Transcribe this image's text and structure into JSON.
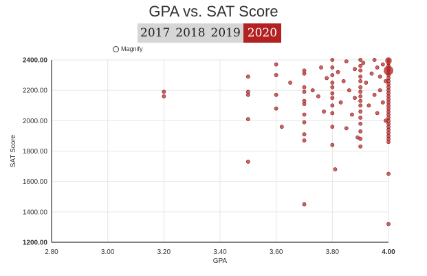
{
  "chart_data": {
    "type": "scatter",
    "title": "GPA vs. SAT Score",
    "xlabel": "GPA",
    "ylabel": "SAT Score",
    "xlim": [
      2.8,
      4.0
    ],
    "ylim": [
      1200,
      2400
    ],
    "x_ticks": [
      "2.80",
      "3.00",
      "3.20",
      "3.40",
      "3.60",
      "3.80",
      "4.00"
    ],
    "y_ticks": [
      "1200.00",
      "1400.00",
      "1600.00",
      "1800.00",
      "2000.00",
      "2200.00",
      "2400.00"
    ],
    "grid": true,
    "marker_color": "#b22222",
    "points": [
      [
        3.2,
        2190
      ],
      [
        3.2,
        2160
      ],
      [
        3.5,
        2290
      ],
      [
        3.5,
        2190
      ],
      [
        3.5,
        2170
      ],
      [
        3.5,
        2010
      ],
      [
        3.5,
        1730
      ],
      [
        3.6,
        2370
      ],
      [
        3.6,
        2300
      ],
      [
        3.6,
        2170
      ],
      [
        3.6,
        2080
      ],
      [
        3.62,
        1960
      ],
      [
        3.65,
        2250
      ],
      [
        3.7,
        2330
      ],
      [
        3.7,
        2310
      ],
      [
        3.7,
        2220
      ],
      [
        3.7,
        2190
      ],
      [
        3.7,
        2130
      ],
      [
        3.7,
        2110
      ],
      [
        3.7,
        2040
      ],
      [
        3.7,
        1990
      ],
      [
        3.7,
        1910
      ],
      [
        3.7,
        1870
      ],
      [
        3.7,
        1450
      ],
      [
        3.73,
        2200
      ],
      [
        3.75,
        2160
      ],
      [
        3.76,
        2350
      ],
      [
        3.77,
        2060
      ],
      [
        3.78,
        2280
      ],
      [
        3.8,
        2400
      ],
      [
        3.8,
        2350
      ],
      [
        3.8,
        2300
      ],
      [
        3.8,
        2250
      ],
      [
        3.8,
        2220
      ],
      [
        3.8,
        2180
      ],
      [
        3.8,
        2150
      ],
      [
        3.8,
        2100
      ],
      [
        3.8,
        2050
      ],
      [
        3.8,
        1960
      ],
      [
        3.8,
        1840
      ],
      [
        3.81,
        1680
      ],
      [
        3.82,
        2320
      ],
      [
        3.83,
        2120
      ],
      [
        3.84,
        2260
      ],
      [
        3.85,
        2390
      ],
      [
        3.85,
        1950
      ],
      [
        3.86,
        2200
      ],
      [
        3.87,
        2040
      ],
      [
        3.88,
        2340
      ],
      [
        3.88,
        2150
      ],
      [
        3.89,
        1890
      ],
      [
        3.9,
        2400
      ],
      [
        3.9,
        2360
      ],
      [
        3.9,
        2330
      ],
      [
        3.9,
        2290
      ],
      [
        3.9,
        2260
      ],
      [
        3.9,
        2220
      ],
      [
        3.9,
        2190
      ],
      [
        3.9,
        2160
      ],
      [
        3.9,
        2130
      ],
      [
        3.9,
        2100
      ],
      [
        3.9,
        2060
      ],
      [
        3.9,
        2020
      ],
      [
        3.9,
        1980
      ],
      [
        3.9,
        1930
      ],
      [
        3.9,
        1880
      ],
      [
        3.9,
        1830
      ],
      [
        3.91,
        2380
      ],
      [
        3.92,
        2250
      ],
      [
        3.93,
        2100
      ],
      [
        3.94,
        2310
      ],
      [
        3.95,
        2170
      ],
      [
        3.95,
        2400
      ],
      [
        3.96,
        2050
      ],
      [
        3.96,
        2350
      ],
      [
        3.97,
        2200
      ],
      [
        3.97,
        2290
      ],
      [
        3.98,
        2370
      ],
      [
        3.98,
        2120
      ],
      [
        3.99,
        2000
      ],
      [
        3.99,
        2260
      ],
      [
        4.0,
        2400
      ],
      [
        4.0,
        2380
      ],
      [
        4.0,
        2360
      ],
      [
        4.0,
        2340
      ],
      [
        4.0,
        2320
      ],
      [
        4.0,
        2300
      ],
      [
        4.0,
        2280
      ],
      [
        4.0,
        2260
      ],
      [
        4.0,
        2240
      ],
      [
        4.0,
        2220
      ],
      [
        4.0,
        2200
      ],
      [
        4.0,
        2180
      ],
      [
        4.0,
        2160
      ],
      [
        4.0,
        2140
      ],
      [
        4.0,
        2120
      ],
      [
        4.0,
        2100
      ],
      [
        4.0,
        2080
      ],
      [
        4.0,
        2060
      ],
      [
        4.0,
        2040
      ],
      [
        4.0,
        2020
      ],
      [
        4.0,
        2000
      ],
      [
        4.0,
        1980
      ],
      [
        4.0,
        1960
      ],
      [
        4.0,
        1940
      ],
      [
        4.0,
        1920
      ],
      [
        4.0,
        1900
      ],
      [
        4.0,
        1880
      ],
      [
        4.0,
        1860
      ],
      [
        4.0,
        1650
      ],
      [
        4.0,
        1320
      ]
    ]
  },
  "year_tabs": {
    "items": [
      "2017",
      "2018",
      "2019",
      "2020"
    ],
    "active": "2020"
  },
  "magnify": {
    "label": "Magnify"
  }
}
